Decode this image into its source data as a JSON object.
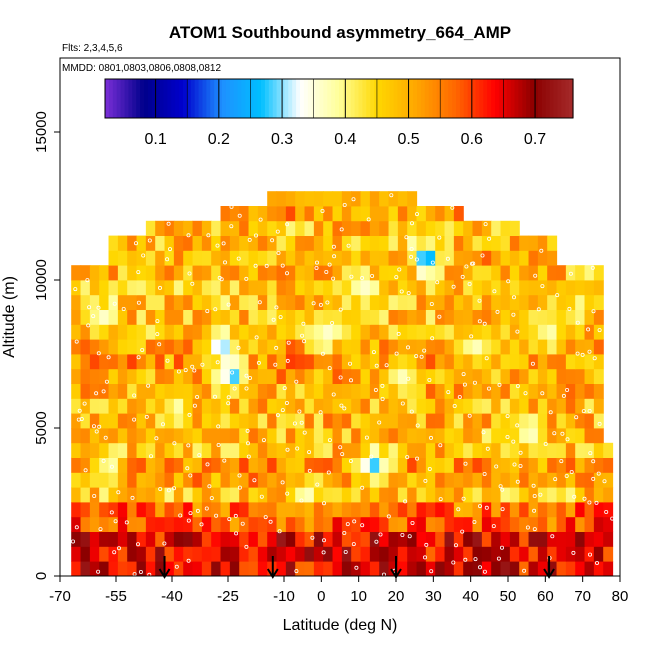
{
  "chart_data": {
    "type": "heatmap",
    "title": "ATOM1 Southbound asymmetry_664_AMP",
    "subtitle": "Flts: 2,3,4,5,6",
    "annotation": "MMDD: 0801,0803,0806,0808,0812",
    "xlabel": "Latitude (deg N)",
    "ylabel": "Altitude (m)",
    "xlim": [
      -70,
      80
    ],
    "ylim": [
      0,
      17500
    ],
    "x_ticks": [
      -70,
      -55,
      -40,
      -25,
      -10,
      0,
      10,
      20,
      30,
      40,
      50,
      60,
      70,
      80
    ],
    "y_ticks": [
      0,
      5000,
      10000,
      15000
    ],
    "colorbar": {
      "range": [
        0.02,
        0.76
      ],
      "ticks": [
        0.1,
        0.2,
        0.3,
        0.4,
        0.5,
        0.6,
        0.7
      ],
      "colors": [
        "#7b2fd8",
        "#00008b",
        "#0000cd",
        "#1e90ff",
        "#00bfff",
        "#ffffff",
        "#ffff99",
        "#ffd700",
        "#ffa500",
        "#ff6600",
        "#ff0000",
        "#8b0000",
        "#a52a2a"
      ]
    },
    "bin_size": {
      "lat_deg": 2.5,
      "alt_m": 500
    },
    "profile_markers_lat": [
      -42,
      -13,
      20,
      61
    ],
    "envelope": [
      [
        -67,
        0,
        10500
      ],
      [
        -58,
        0,
        11500
      ],
      [
        -47,
        0,
        12000
      ],
      [
        -38,
        0,
        12000
      ],
      [
        -26,
        0,
        12500
      ],
      [
        -14,
        0,
        13000
      ],
      [
        1,
        0,
        13000
      ],
      [
        26,
        0,
        13000
      ],
      [
        37,
        0,
        12500
      ],
      [
        53,
        0,
        12000
      ],
      [
        63,
        0,
        11500
      ],
      [
        75,
        0,
        10500
      ],
      [
        79,
        0,
        4200
      ]
    ],
    "anomalies": [
      {
        "lat": -25,
        "alt": 6500,
        "value": 0.28
      },
      {
        "lat": -28,
        "alt": 7500,
        "value": 0.3
      },
      {
        "lat": 13,
        "alt": 3500,
        "value": 0.28
      },
      {
        "lat": 27,
        "alt": 10500,
        "value": 0.25
      },
      {
        "lat": -60,
        "alt": 8500,
        "value": 0.36
      },
      {
        "lat": 0,
        "alt": 8000,
        "value": 0.36
      },
      {
        "lat": 10,
        "alt": 9500,
        "value": 0.36
      },
      {
        "lat": 40,
        "alt": 7500,
        "value": 0.37
      },
      {
        "lat": -5,
        "alt": 2500,
        "value": 0.37
      },
      {
        "lat": 55,
        "alt": 4500,
        "value": 0.37
      },
      {
        "lat": -58,
        "alt": 3500,
        "value": 0.38
      },
      {
        "lat": 20,
        "alt": 6500,
        "value": 0.37
      },
      {
        "lat": -40,
        "alt": 5500,
        "value": 0.38
      },
      {
        "lat": 70,
        "alt": 10000,
        "value": 0.4
      },
      {
        "lat": 60,
        "alt": 8000,
        "value": 0.38
      }
    ]
  }
}
